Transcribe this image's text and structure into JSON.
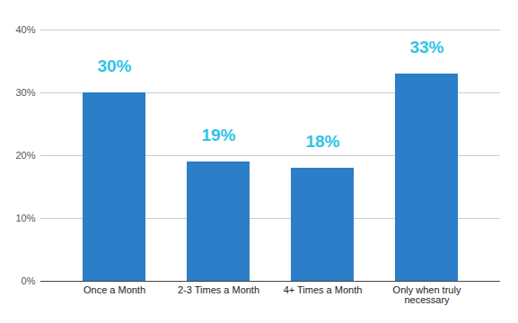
{
  "chart_data": {
    "type": "bar",
    "categories": [
      "Once a Month",
      "2-3 Times a Month",
      "4+ Times a Month",
      "Only when truly necessary"
    ],
    "values": [
      30,
      19,
      18,
      33
    ],
    "value_labels": [
      "30%",
      "19%",
      "18%",
      "33%"
    ],
    "color": "#2b7ec7",
    "ylim": [
      0,
      40
    ],
    "yticks": [
      {
        "value": 0,
        "label": "0%"
      },
      {
        "value": 10,
        "label": "10%"
      },
      {
        "value": 20,
        "label": "20%"
      },
      {
        "value": 30,
        "label": "30%"
      },
      {
        "value": 40,
        "label": "40%"
      }
    ],
    "grid": true,
    "data_labels": true
  }
}
